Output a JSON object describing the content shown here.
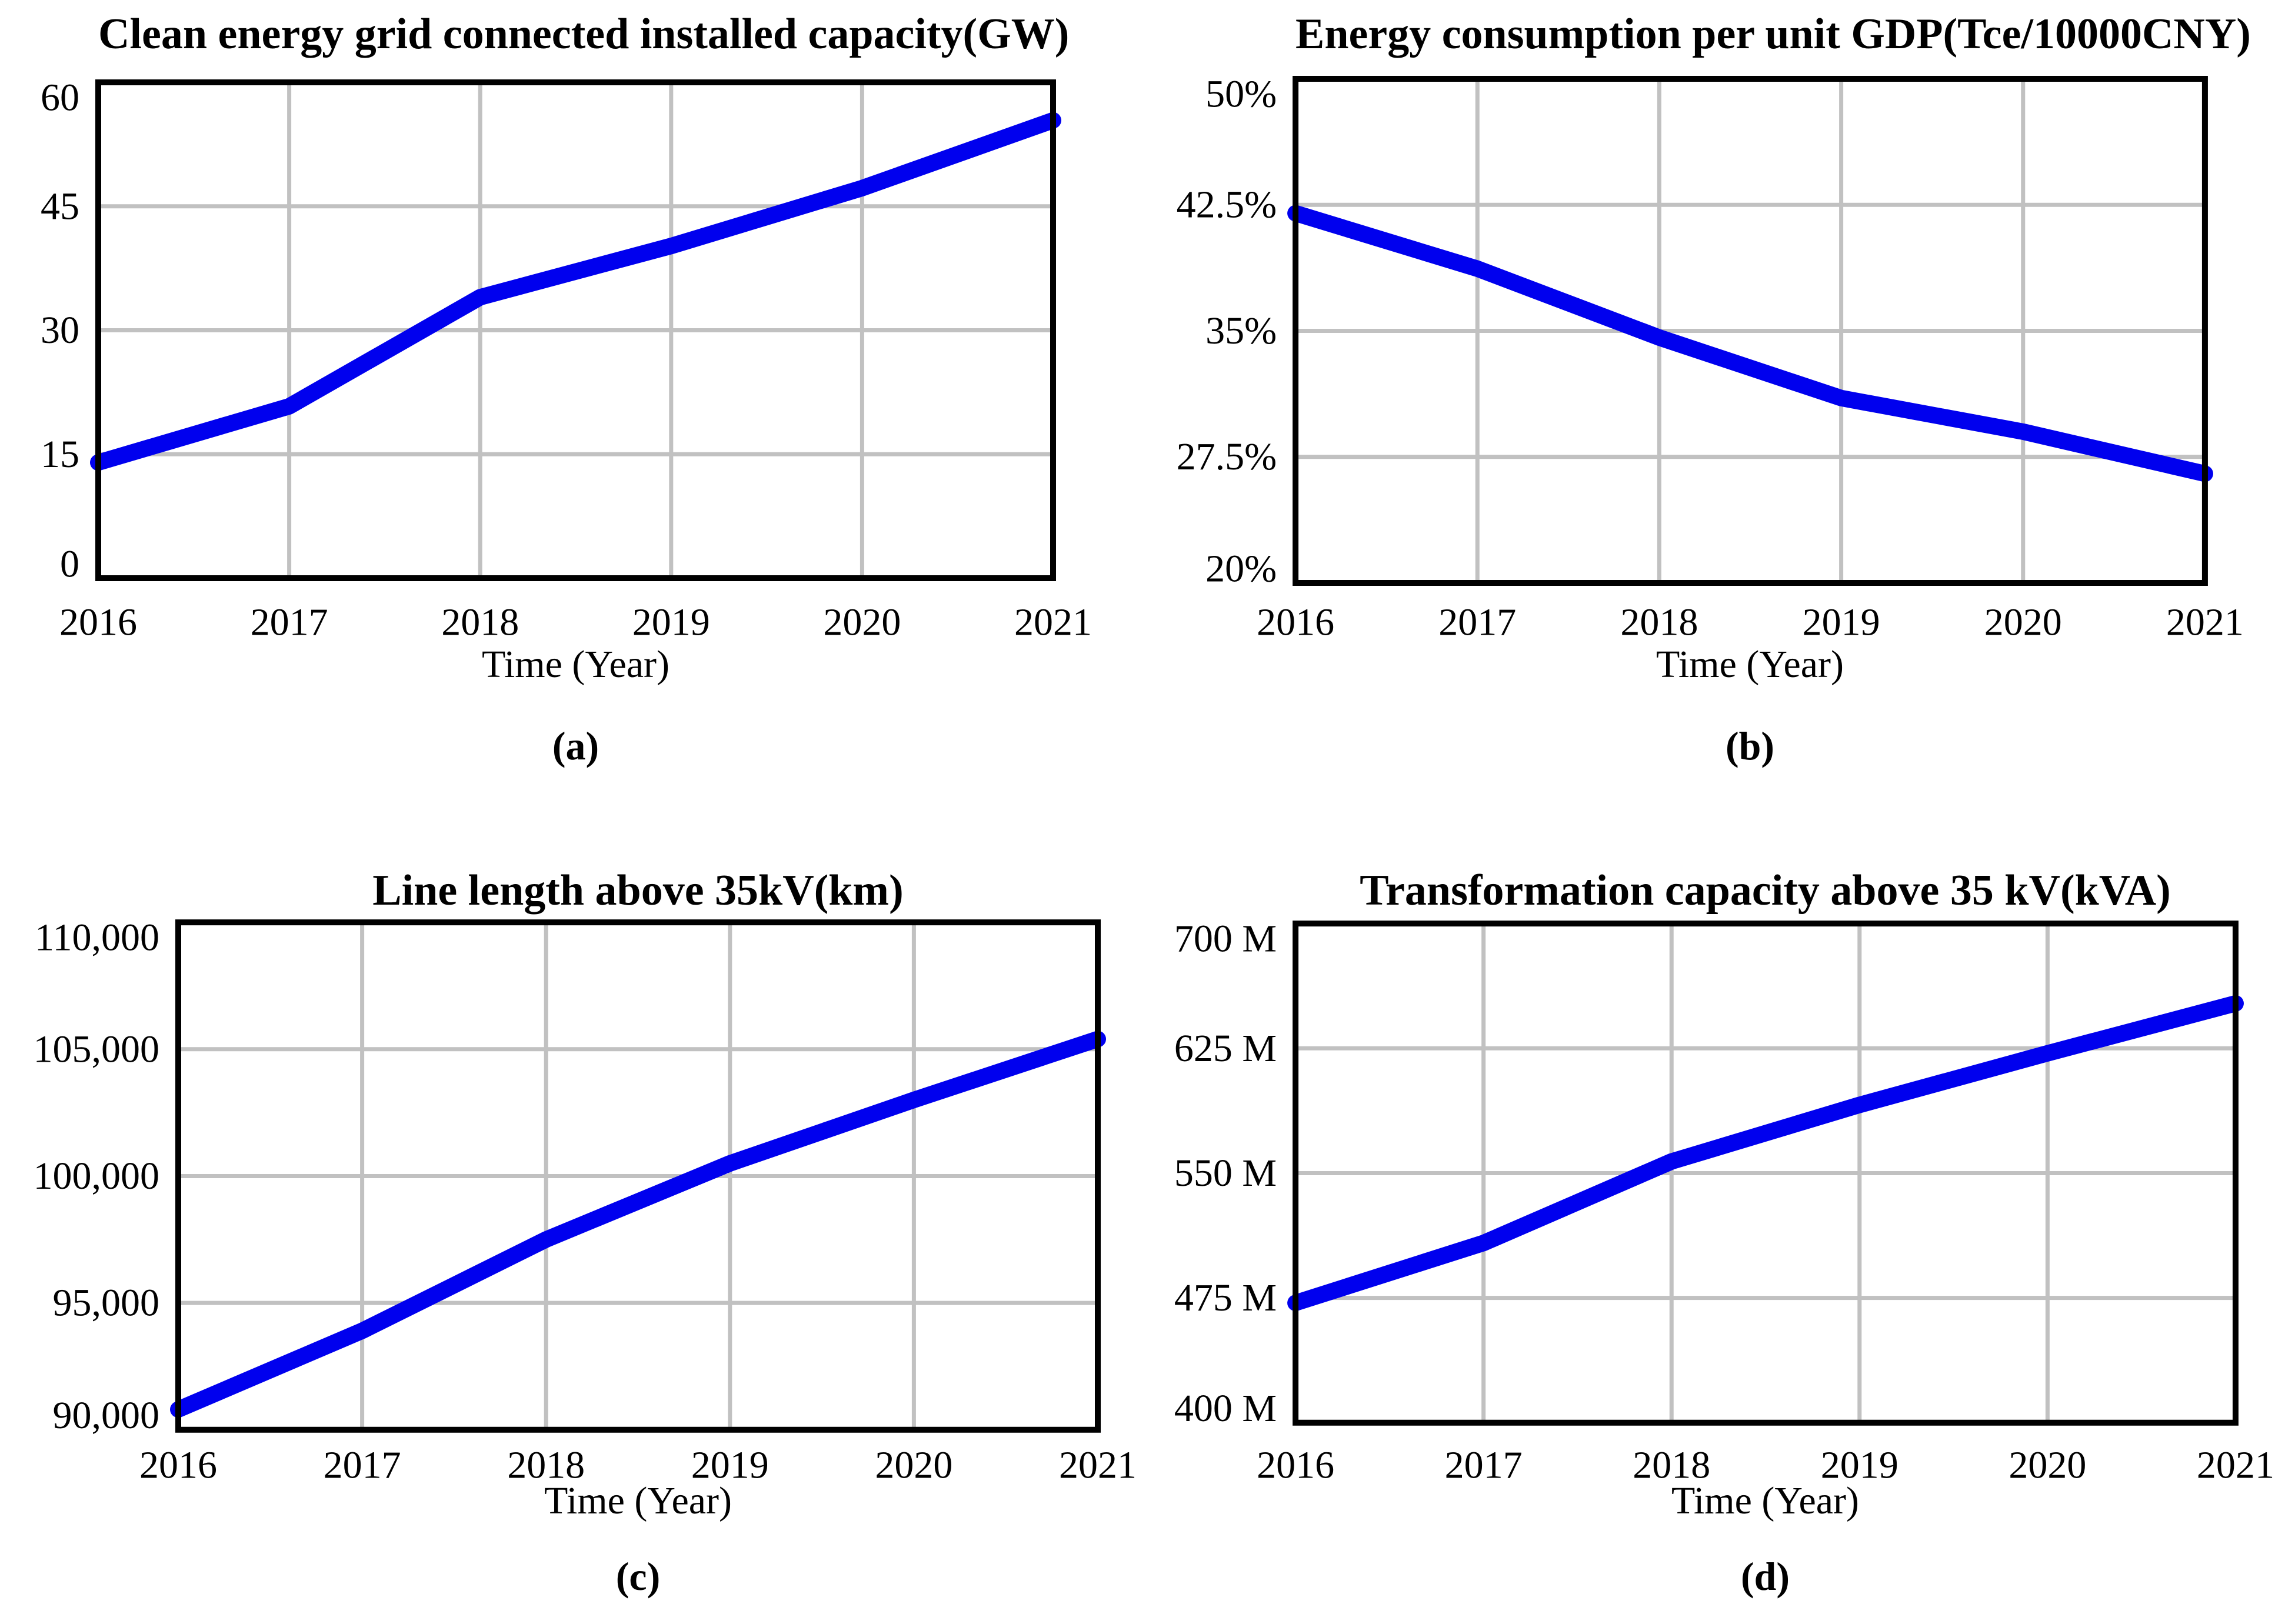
{
  "figure": {
    "background_color": "#ffffff",
    "axis_color": "#000000",
    "grid_color": "#c1c1c1"
  },
  "chart_data": [
    {
      "type": "line",
      "panel_label": "(a)",
      "title": "Clean energy grid connected installed capacity(GW)",
      "xlabel": "Time (Year)",
      "x": [
        2016,
        2017,
        2018,
        2019,
        2020,
        2021
      ],
      "x_tick_labels": [
        "2016",
        "2017",
        "2018",
        "2019",
        "2020",
        "2021"
      ],
      "values": [
        14,
        20.8,
        34,
        40.2,
        47.2,
        55.4
      ],
      "ylim": [
        0,
        60
      ],
      "yticks": [
        0,
        15,
        30,
        45,
        60
      ],
      "ytick_labels": [
        "0",
        "15",
        "30",
        "45",
        "60"
      ],
      "grid": true,
      "legend": "none",
      "line_color": "#0000ee"
    },
    {
      "type": "line",
      "panel_label": "(b)",
      "title": "Energy consumption per unit GDP(Tce/10000CNY)",
      "xlabel": "Time (Year)",
      "x": [
        2016,
        2017,
        2018,
        2019,
        2020,
        2021
      ],
      "x_tick_labels": [
        "2016",
        "2017",
        "2018",
        "2019",
        "2020",
        "2021"
      ],
      "values": [
        42,
        38.7,
        34.6,
        31,
        29,
        26.5
      ],
      "ylim": [
        20,
        50
      ],
      "yticks": [
        20,
        27.5,
        35,
        42.5,
        50
      ],
      "ytick_labels": [
        "20%",
        "27.5%",
        "35%",
        "42.5%",
        "50%"
      ],
      "grid": true,
      "legend": "none",
      "line_color": "#0000ee"
    },
    {
      "type": "line",
      "panel_label": "(c)",
      "title": "Line length above 35kV(km)",
      "xlabel": "Time (Year)",
      "x": [
        2016,
        2017,
        2018,
        2019,
        2020,
        2021
      ],
      "x_tick_labels": [
        "2016",
        "2017",
        "2018",
        "2019",
        "2020",
        "2021"
      ],
      "values": [
        90800,
        93900,
        97500,
        100500,
        103000,
        105400
      ],
      "ylim": [
        90000,
        110000
      ],
      "yticks": [
        90000,
        95000,
        100000,
        105000,
        110000
      ],
      "ytick_labels": [
        "90,000",
        "95,000",
        "100,000",
        "105,000",
        "110,000"
      ],
      "grid": true,
      "legend": "none",
      "line_color": "#0000ee"
    },
    {
      "type": "line",
      "panel_label": "(d)",
      "title": "Transformation capacity above 35 kV(kVA)",
      "xlabel": "Time (Year)",
      "x": [
        2016,
        2017,
        2018,
        2019,
        2020,
        2021
      ],
      "x_tick_labels": [
        "2016",
        "2017",
        "2018",
        "2019",
        "2020",
        "2021"
      ],
      "values": [
        472,
        508,
        557,
        591,
        622,
        652
      ],
      "ylim": [
        400,
        700
      ],
      "yticks": [
        400,
        475,
        550,
        625,
        700
      ],
      "ytick_labels": [
        "400 M",
        "475 M",
        "550 M",
        "625 M",
        "700 M"
      ],
      "grid": true,
      "legend": "none",
      "line_color": "#0000ee"
    }
  ]
}
